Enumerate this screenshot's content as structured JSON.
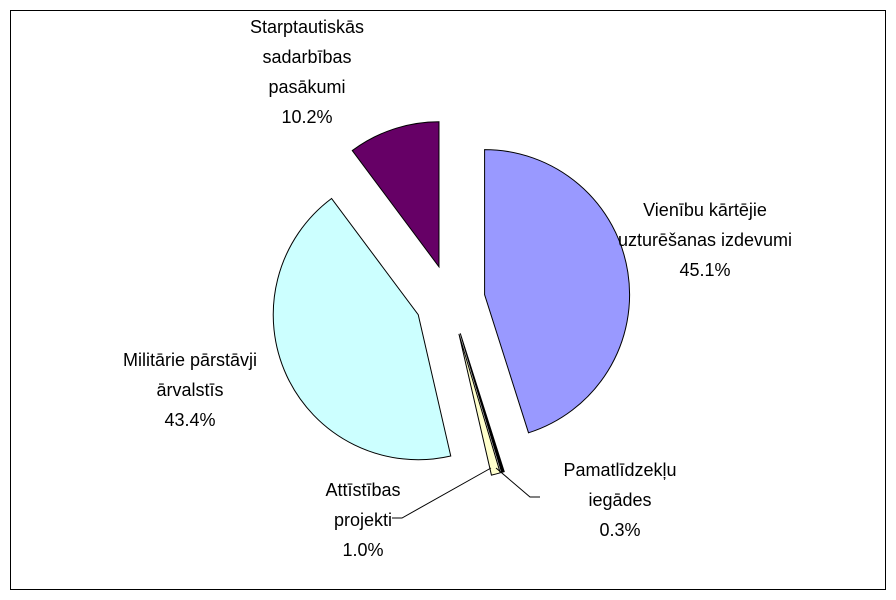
{
  "chart_data": {
    "type": "pie",
    "categories": [
      "Vienību kārtējie uzturēšanas izdevumi",
      "Pamatlīdzekļu iegādes",
      "Attīstības projekti",
      "Militārie pārstāvji ārvalstīs",
      "Starptautiskās sadarbības pasākumi"
    ],
    "values": [
      45.1,
      0.3,
      1.0,
      43.4,
      10.2
    ],
    "value_labels": [
      "45.1%",
      "0.3%",
      "1.0%",
      "43.4%",
      "10.2%"
    ],
    "colors": [
      "#9999ff",
      "#000000",
      "#ffffcc",
      "#ccffff",
      "#660066"
    ]
  }
}
